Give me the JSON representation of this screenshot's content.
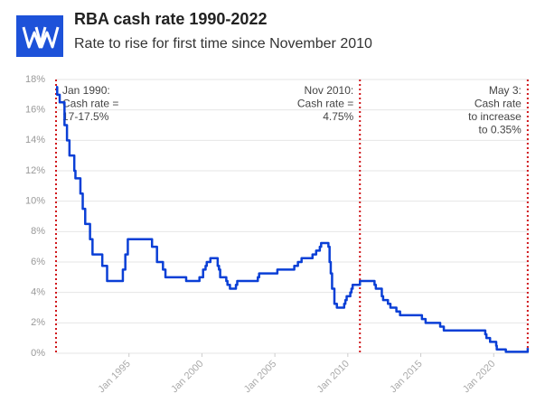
{
  "chart_data": {
    "type": "line",
    "title": "RBA cash rate 1990-2022",
    "subtitle": "Rate to rise for first time since November 2010",
    "color": "#0a3fd6",
    "grid": true,
    "xlim": [
      1990,
      2022.4
    ],
    "ylim": [
      0,
      18
    ],
    "xticks": [
      {
        "value": 1995,
        "label": "Jan 1995"
      },
      {
        "value": 2000,
        "label": "Jan 2000"
      },
      {
        "value": 2005,
        "label": "Jan 2005"
      },
      {
        "value": 2010,
        "label": "Jan 2010"
      },
      {
        "value": 2015,
        "label": "Jan 2015"
      },
      {
        "value": 2020,
        "label": "Jan 2020"
      }
    ],
    "yticks": [
      {
        "value": 0,
        "label": "0%"
      },
      {
        "value": 2,
        "label": "2%"
      },
      {
        "value": 4,
        "label": "4%"
      },
      {
        "value": 6,
        "label": "6%"
      },
      {
        "value": 8,
        "label": "8%"
      },
      {
        "value": 10,
        "label": "10%"
      },
      {
        "value": 12,
        "label": "12%"
      },
      {
        "value": 14,
        "label": "14%"
      },
      {
        "value": 16,
        "label": "16%"
      },
      {
        "value": 18,
        "label": "18%"
      }
    ],
    "x": [
      1990.0,
      1990.08,
      1990.08,
      1990.25,
      1990.25,
      1990.58,
      1990.58,
      1990.75,
      1990.75,
      1990.92,
      1990.92,
      1991.25,
      1991.25,
      1991.33,
      1991.33,
      1991.67,
      1991.67,
      1991.83,
      1991.83,
      1992.0,
      1992.0,
      1992.33,
      1992.33,
      1992.5,
      1992.5,
      1993.17,
      1993.17,
      1993.5,
      1993.5,
      1994.58,
      1994.58,
      1994.75,
      1994.75,
      1994.92,
      1994.92,
      1996.58,
      1996.58,
      1996.92,
      1996.92,
      1997.33,
      1997.33,
      1997.5,
      1997.5,
      1998.92,
      1998.92,
      1999.83,
      1999.83,
      2000.08,
      2000.08,
      2000.25,
      2000.25,
      2000.33,
      2000.33,
      2000.58,
      2000.58,
      2001.08,
      2001.08,
      2001.17,
      2001.17,
      2001.25,
      2001.25,
      2001.67,
      2001.67,
      2001.75,
      2001.75,
      2001.92,
      2001.92,
      2002.33,
      2002.33,
      2002.42,
      2002.42,
      2003.83,
      2003.83,
      2003.92,
      2003.92,
      2005.17,
      2005.17,
      2006.33,
      2006.33,
      2006.58,
      2006.58,
      2006.83,
      2006.83,
      2007.58,
      2007.58,
      2007.83,
      2007.83,
      2008.08,
      2008.08,
      2008.17,
      2008.17,
      2008.67,
      2008.67,
      2008.75,
      2008.75,
      2008.83,
      2008.83,
      2008.92,
      2008.92,
      2009.08,
      2009.08,
      2009.25,
      2009.25,
      2009.75,
      2009.75,
      2009.83,
      2009.83,
      2009.92,
      2009.92,
      2010.17,
      2010.17,
      2010.25,
      2010.25,
      2010.33,
      2010.33,
      2010.83,
      2010.83,
      2011.83,
      2011.83,
      2011.92,
      2011.92,
      2012.33,
      2012.33,
      2012.42,
      2012.42,
      2012.75,
      2012.75,
      2012.92,
      2012.92,
      2013.33,
      2013.33,
      2013.58,
      2013.58,
      2015.08,
      2015.08,
      2015.33,
      2015.33,
      2016.33,
      2016.33,
      2016.58,
      2016.58,
      2019.42,
      2019.42,
      2019.5,
      2019.5,
      2019.75,
      2019.75,
      2020.17,
      2020.17,
      2020.21,
      2020.21,
      2020.83,
      2020.83,
      2022.33,
      2022.33
    ],
    "values": [
      17.5,
      17.5,
      17.0,
      17.0,
      16.5,
      16.5,
      15.0,
      15.0,
      14.0,
      14.0,
      13.0,
      13.0,
      12.0,
      12.0,
      11.5,
      11.5,
      10.5,
      10.5,
      9.5,
      9.5,
      8.5,
      8.5,
      7.5,
      7.5,
      6.5,
      6.5,
      5.75,
      5.75,
      4.75,
      4.75,
      5.5,
      5.5,
      6.5,
      6.5,
      7.5,
      7.5,
      7.0,
      7.0,
      6.0,
      6.0,
      5.5,
      5.5,
      5.0,
      5.0,
      4.75,
      4.75,
      5.0,
      5.0,
      5.5,
      5.5,
      5.75,
      5.75,
      6.0,
      6.0,
      6.25,
      6.25,
      5.75,
      5.75,
      5.5,
      5.5,
      5.0,
      5.0,
      4.75,
      4.75,
      4.5,
      4.5,
      4.25,
      4.25,
      4.5,
      4.5,
      4.75,
      4.75,
      5.0,
      5.0,
      5.25,
      5.25,
      5.5,
      5.5,
      5.75,
      5.75,
      6.0,
      6.0,
      6.25,
      6.25,
      6.5,
      6.5,
      6.75,
      6.75,
      7.0,
      7.0,
      7.25,
      7.25,
      7.0,
      7.0,
      6.0,
      6.0,
      5.25,
      5.25,
      4.25,
      4.25,
      3.25,
      3.25,
      3.0,
      3.0,
      3.25,
      3.25,
      3.5,
      3.5,
      3.75,
      3.75,
      4.0,
      4.0,
      4.25,
      4.25,
      4.5,
      4.5,
      4.75,
      4.75,
      4.5,
      4.5,
      4.25,
      4.25,
      3.75,
      3.75,
      3.5,
      3.5,
      3.25,
      3.25,
      3.0,
      3.0,
      2.75,
      2.75,
      2.5,
      2.5,
      2.25,
      2.25,
      2.0,
      2.0,
      1.75,
      1.75,
      1.5,
      1.5,
      1.25,
      1.25,
      1.0,
      1.0,
      0.75,
      0.75,
      0.5,
      0.5,
      0.25,
      0.25,
      0.1,
      0.1,
      0.35
    ],
    "annotations": [
      {
        "x": 1990.0,
        "align": "left",
        "text": [
          "Jan 1990:",
          "Cash rate =",
          "17-17.5%"
        ]
      },
      {
        "x": 2010.83,
        "align": "right",
        "text": [
          "Nov 2010:",
          "Cash rate =",
          "4.75%"
        ]
      },
      {
        "x": 2022.33,
        "align": "right",
        "text": [
          "May 3:",
          "Cash rate",
          "to increase",
          "to 0.35%"
        ]
      }
    ]
  }
}
